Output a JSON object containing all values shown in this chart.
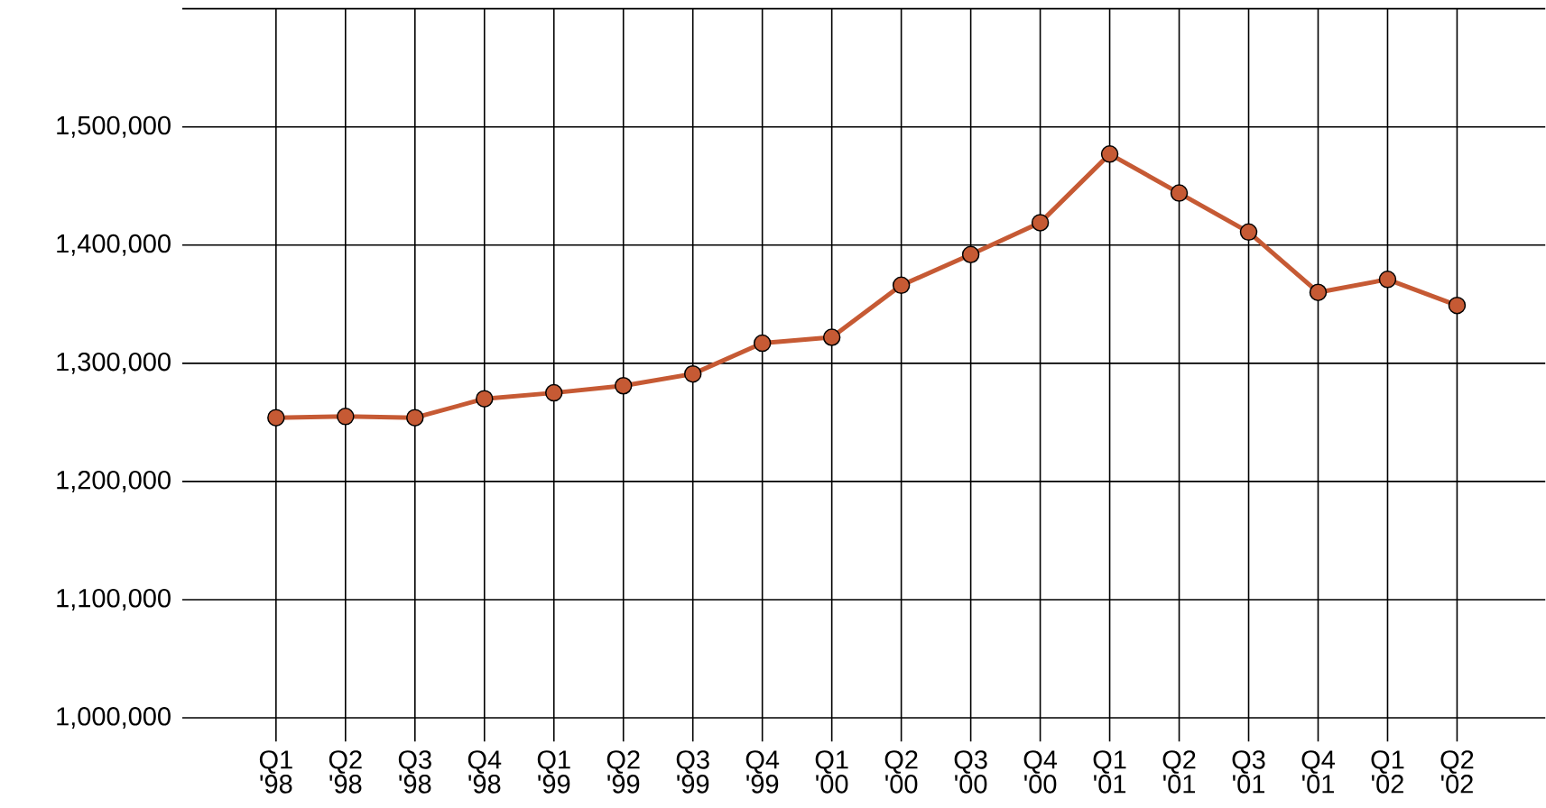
{
  "chart_data": {
    "type": "line",
    "categories": [
      "Q1 '98",
      "Q2 '98",
      "Q3 '98",
      "Q4 '98",
      "Q1 '99",
      "Q2 '99",
      "Q3 '99",
      "Q4 '99",
      "Q1 '00",
      "Q2 '00",
      "Q3 '00",
      "Q4 '00",
      "Q1 '01",
      "Q2 '01",
      "Q3 '01",
      "Q4 '01",
      "Q1 '02",
      "Q2 '02"
    ],
    "series": [
      {
        "color": "#c65a34",
        "values": [
          1254000,
          1255000,
          1254000,
          1270000,
          1275000,
          1281000,
          1291000,
          1317000,
          1322000,
          1366000,
          1392000,
          1419000,
          1477000,
          1444000,
          1411000,
          1360000,
          1371000,
          1349000
        ]
      }
    ],
    "ylim": [
      980000,
      1600000
    ],
    "yticks": [
      {
        "value": 1000000,
        "label": "1,000,000"
      },
      {
        "value": 1100000,
        "label": "1,100,000"
      },
      {
        "value": 1200000,
        "label": "1,200,000"
      },
      {
        "value": 1300000,
        "label": "1,300,000"
      },
      {
        "value": 1400000,
        "label": "1,400,000"
      },
      {
        "value": 1500000,
        "label": "1,500,000"
      },
      {
        "value": 1600000,
        "label": null
      }
    ],
    "grid": true,
    "marker": "circle",
    "line_style": "solid"
  }
}
